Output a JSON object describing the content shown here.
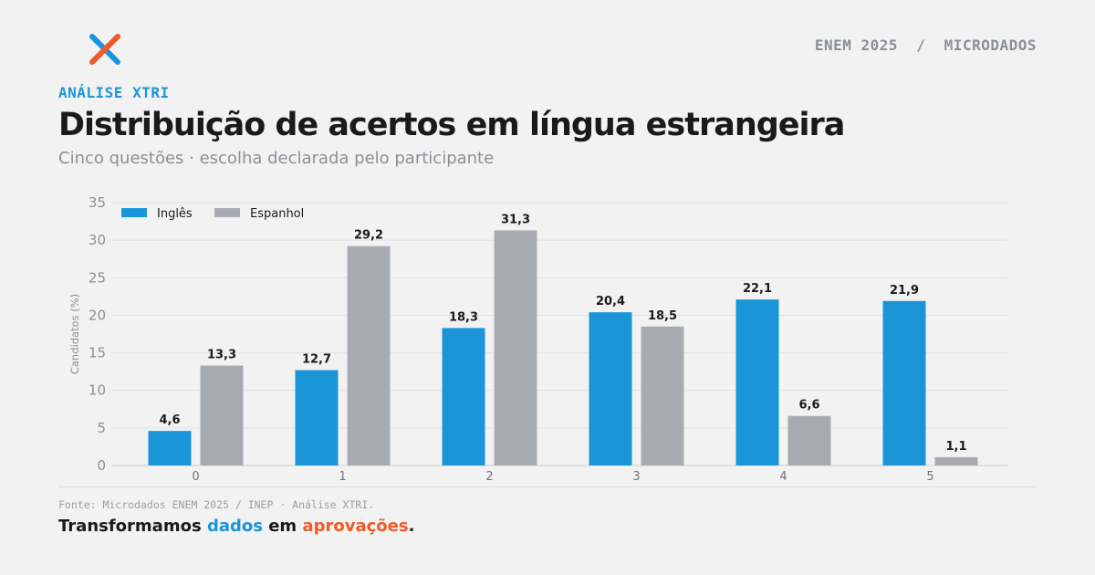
{
  "brand": {
    "logo_icon": "xtri-x-logo-icon",
    "top_right": "ENEM 2025  /  MICRODADOS",
    "kicker": "ANÁLISE XTRI"
  },
  "header": {
    "title": "Distribuição de acertos em língua estrangeira",
    "subtitle": "Cinco questões · escolha declarada pelo participante"
  },
  "colors": {
    "ingles": "#1a96d8",
    "espanhol": "#a7abb1",
    "accent_orange": "#f05a28"
  },
  "chart_data": {
    "type": "bar",
    "categories": [
      "0",
      "1",
      "2",
      "3",
      "4",
      "5"
    ],
    "series": [
      {
        "name": "Inglês",
        "values": [
          4.6,
          12.7,
          18.3,
          20.4,
          22.1,
          21.9
        ],
        "labels": [
          "4,6",
          "12,7",
          "18,3",
          "20,4",
          "22,1",
          "21,9"
        ]
      },
      {
        "name": "Espanhol",
        "values": [
          13.3,
          29.2,
          31.3,
          18.5,
          6.6,
          1.1
        ],
        "labels": [
          "13,3",
          "29,2",
          "31,3",
          "18,5",
          "6,6",
          "1,1"
        ]
      }
    ],
    "ylabel": "Candidatos (%)",
    "xlabel": "",
    "ylim": [
      0,
      35
    ],
    "yticks": [
      0,
      5,
      10,
      15,
      20,
      25,
      30,
      35
    ],
    "grid": true,
    "legend": "top-left"
  },
  "footer": {
    "source": "Fonte: Microdados ENEM 2025 / INEP · Análise XTRI.",
    "tagline_1": "Transformamos ",
    "tagline_2": "dados",
    "tagline_3": " em ",
    "tagline_4": "aprovações",
    "tagline_5": "."
  }
}
